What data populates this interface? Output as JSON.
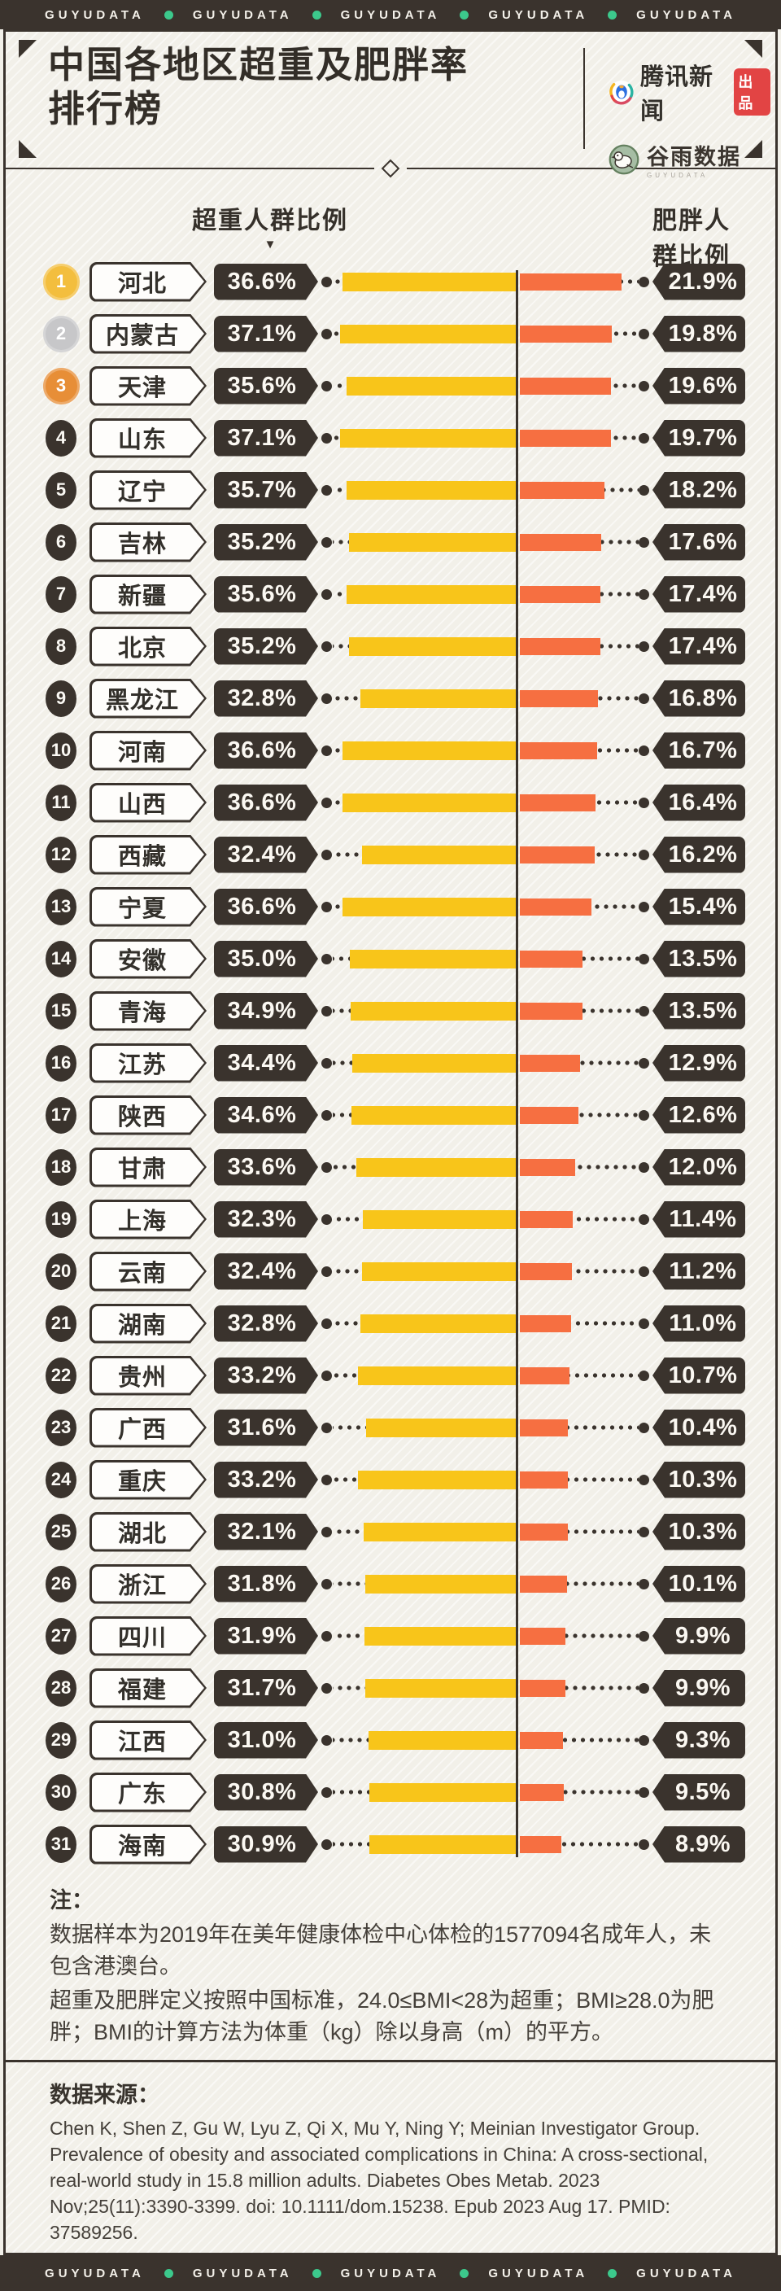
{
  "banner": {
    "label": "GUYUDATA",
    "repeat": 5,
    "dot_color": "#3CC98C"
  },
  "header": {
    "title_line1": "中国各地区超重及肥胖率",
    "title_line2": "排行榜",
    "producer_logo": "腾讯新闻",
    "producer_badge": "出品",
    "data_brand": "谷雨数据",
    "data_brand_sub": "GUYUDATA"
  },
  "chart_data": {
    "type": "bar",
    "orientation": "horizontal-diverging",
    "title": "中国各地区超重及肥胖率排行榜",
    "unit": "%",
    "legend_position": "top",
    "grid": false,
    "categories": [
      "河北",
      "内蒙古",
      "天津",
      "山东",
      "辽宁",
      "吉林",
      "新疆",
      "北京",
      "黑龙江",
      "河南",
      "山西",
      "西藏",
      "宁夏",
      "安徽",
      "青海",
      "江苏",
      "陕西",
      "甘肃",
      "上海",
      "云南",
      "湖南",
      "贵州",
      "广西",
      "重庆",
      "湖北",
      "浙江",
      "四川",
      "福建",
      "江西",
      "广东",
      "海南"
    ],
    "series": [
      {
        "name": "超重人群比例",
        "color": "#F8C51A",
        "values": [
          36.6,
          37.1,
          35.6,
          37.1,
          35.7,
          35.2,
          35.6,
          35.2,
          32.8,
          36.6,
          36.6,
          32.4,
          36.6,
          35.0,
          34.9,
          34.4,
          34.6,
          33.6,
          32.3,
          32.4,
          32.8,
          33.2,
          31.6,
          33.2,
          32.1,
          31.8,
          31.9,
          31.7,
          31.0,
          30.8,
          30.9
        ]
      },
      {
        "name": "肥胖人群比例",
        "color": "#F66F41",
        "values": [
          21.9,
          19.8,
          19.6,
          19.7,
          18.2,
          17.6,
          17.4,
          17.4,
          16.8,
          16.7,
          16.4,
          16.2,
          15.4,
          13.5,
          13.5,
          12.9,
          12.6,
          12.0,
          11.4,
          11.2,
          11.0,
          10.7,
          10.4,
          10.3,
          10.3,
          10.1,
          9.9,
          9.9,
          9.3,
          9.5,
          8.9
        ]
      }
    ],
    "value_label_format": "{value}%"
  },
  "notes": {
    "label": "注：",
    "line1": "数据样本为2019年在美年健康体检中心体检的1577094名成年人，未包含港澳台。",
    "line2": "超重及肥胖定义按照中国标准，24.0≤BMI<28为超重；BMI≥28.0为肥胖；BMI的计算方法为体重（kg）除以身高（m）的平方。"
  },
  "source": {
    "label": "数据来源：",
    "citation": "Chen K, Shen Z, Gu W, Lyu Z, Qi X, Mu Y, Ning Y; Meinian Investigator Group. Prevalence of obesity and associated complications in China: A cross-sectional, real-world study in 15.8 million adults. Diabetes Obes Metab. 2023 Nov;25(11):3390-3399. doi: 10.1111/dom.15238. Epub 2023 Aug 17. PMID: 37589256."
  },
  "colors": {
    "dark": "#3A332D",
    "background": "#F2F0E9",
    "yellow": "#F8C51A",
    "orange": "#F66F41",
    "green_dot": "#3CC98C",
    "badge_red": "#E24444",
    "gold": "#F3BE3E",
    "silver": "#C7C7C9",
    "bronze": "#E78E37"
  }
}
